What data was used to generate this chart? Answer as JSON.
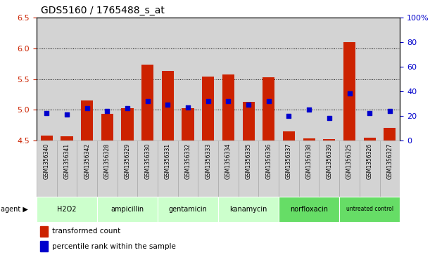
{
  "title": "GDS5160 / 1765488_s_at",
  "samples": [
    "GSM1356340",
    "GSM1356341",
    "GSM1356342",
    "GSM1356328",
    "GSM1356329",
    "GSM1356330",
    "GSM1356331",
    "GSM1356332",
    "GSM1356333",
    "GSM1356334",
    "GSM1356335",
    "GSM1356336",
    "GSM1356337",
    "GSM1356338",
    "GSM1356339",
    "GSM1356325",
    "GSM1356326",
    "GSM1356327"
  ],
  "red_values": [
    4.58,
    4.56,
    5.15,
    4.93,
    5.02,
    5.74,
    5.63,
    5.02,
    5.54,
    5.57,
    5.13,
    5.53,
    4.65,
    4.53,
    4.52,
    6.1,
    4.54,
    4.7
  ],
  "blue_values": [
    22,
    21,
    26,
    24,
    26,
    32,
    29,
    27,
    32,
    32,
    29,
    32,
    20,
    25,
    18,
    38,
    22,
    24
  ],
  "groups": [
    {
      "label": "H2O2",
      "start": 0,
      "end": 2,
      "color": "#ccffcc"
    },
    {
      "label": "ampicillin",
      "start": 3,
      "end": 5,
      "color": "#ccffcc"
    },
    {
      "label": "gentamicin",
      "start": 6,
      "end": 8,
      "color": "#ccffcc"
    },
    {
      "label": "kanamycin",
      "start": 9,
      "end": 11,
      "color": "#ccffcc"
    },
    {
      "label": "norfloxacin",
      "start": 12,
      "end": 14,
      "color": "#66dd66"
    },
    {
      "label": "untreated control",
      "start": 15,
      "end": 17,
      "color": "#66dd66"
    }
  ],
  "ylim_left": [
    4.5,
    6.5
  ],
  "ylim_right": [
    0,
    100
  ],
  "bar_color": "#cc2200",
  "dot_color": "#0000cc",
  "plot_bg_color": "#d3d3d3",
  "sample_box_color": "#d3d3d3",
  "title_fontsize": 10,
  "tick_color_left": "#cc2200",
  "tick_color_right": "#0000cc",
  "legend_red_label": "transformed count",
  "legend_blue_label": "percentile rank within the sample"
}
